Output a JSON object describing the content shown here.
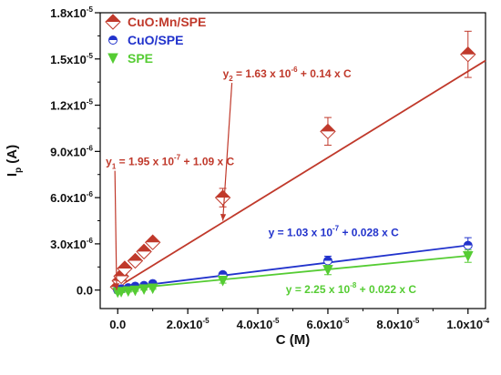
{
  "chart_data": {
    "type": "scatter",
    "xlabel": "C (M)",
    "ylabel": {
      "main": "I",
      "sub": "p",
      "unit": " (A)"
    },
    "xlim": [
      -5e-06,
      0.000105
    ],
    "ylim": [
      -1.2e-06,
      1.8e-05
    ],
    "xticks": [
      {
        "value": 0,
        "label": "0.0"
      },
      {
        "value": 2e-05,
        "base": "2.0x10",
        "exp": "-5"
      },
      {
        "value": 4e-05,
        "base": "4.0x10",
        "exp": "-5"
      },
      {
        "value": 6e-05,
        "base": "6.0x10",
        "exp": "-5"
      },
      {
        "value": 8e-05,
        "base": "8.0x10",
        "exp": "-5"
      },
      {
        "value": 0.0001,
        "base": "1.0x10",
        "exp": "-4"
      }
    ],
    "yticks": [
      {
        "value": 0,
        "label": "0.0"
      },
      {
        "value": 3e-06,
        "base": "3.0x10",
        "exp": "-6"
      },
      {
        "value": 6e-06,
        "base": "6.0x10",
        "exp": "-6"
      },
      {
        "value": 9e-06,
        "base": "9.0x10",
        "exp": "-6"
      },
      {
        "value": 1.2e-05,
        "base": "1.2x10",
        "exp": "-5"
      },
      {
        "value": 1.5e-05,
        "base": "1.5x10",
        "exp": "-5"
      },
      {
        "value": 1.8e-05,
        "base": "1.8x10",
        "exp": "-5"
      }
    ],
    "legend_position": "top-left",
    "series": [
      {
        "name": "CuO:Mn/SPE",
        "color": "#c0392b",
        "marker": "diamond",
        "x": [
          0,
          5e-07,
          1e-06,
          2e-06,
          5e-06,
          7.5e-06,
          1e-05,
          3e-05,
          6e-05,
          0.0001
        ],
        "y": [
          2e-07,
          6e-07,
          9e-07,
          1.4e-06,
          1.9e-06,
          2.5e-06,
          3.1e-06,
          6e-06,
          1.03e-05,
          1.53e-05
        ],
        "err": [
          3e-07,
          3e-07,
          3e-07,
          2e-07,
          2e-07,
          2e-07,
          2e-07,
          6e-07,
          9e-07,
          1.5e-06
        ],
        "fit": {
          "slope": 0.14,
          "intercept": 1.95e-07,
          "x_range": [
            0,
            0.000105
          ]
        }
      },
      {
        "name": "CuO/SPE",
        "color": "#2233cc",
        "marker": "circle",
        "x": [
          0,
          1e-06,
          3e-06,
          5e-06,
          7.5e-06,
          1e-05,
          3e-05,
          6e-05,
          0.0001
        ],
        "y": [
          0,
          8e-08,
          1.5e-07,
          2.5e-07,
          3e-07,
          4.2e-07,
          1e-06,
          1.9e-06,
          2.9e-06
        ],
        "err": [
          5e-08,
          5e-08,
          5e-08,
          5e-08,
          5e-08,
          5e-08,
          1.5e-07,
          3e-07,
          5e-07
        ],
        "fit": {
          "slope": 0.028,
          "intercept": 1.03e-07,
          "x_range": [
            0,
            0.0001
          ]
        }
      },
      {
        "name": "SPE",
        "color": "#55cc33",
        "marker": "triangle-down",
        "x": [
          0,
          1e-06,
          3e-06,
          5e-06,
          7.5e-06,
          1e-05,
          3e-05,
          6e-05,
          0.0001
        ],
        "y": [
          -1.5e-07,
          -1.2e-07,
          -8e-08,
          -3e-08,
          5e-08,
          1e-07,
          6e-07,
          1.3e-06,
          2.2e-06
        ],
        "err": [
          5e-08,
          5e-08,
          5e-08,
          5e-08,
          5e-08,
          5e-08,
          1.5e-07,
          3e-07,
          4e-07
        ],
        "fit": {
          "slope": 0.022,
          "intercept": 2.25e-08,
          "x_range": [
            0,
            0.0001
          ]
        }
      }
    ],
    "annotations": [
      {
        "series": 0,
        "color": "#c0392b",
        "prefix": "y",
        "index": "2",
        "eq": " = 1.63 x 10",
        "exp": "-6",
        "tail": " + 0.14 x C",
        "arrow_to": [
          3e-05,
          4.5e-06
        ]
      },
      {
        "series": 0,
        "color": "#c0392b",
        "prefix": "y",
        "index": "1",
        "eq": " = 1.95 x 10",
        "exp": "-7",
        "tail": " + 1.09 x C",
        "arrow_to": [
          -3e-07,
          0.0
        ]
      },
      {
        "series": 1,
        "color": "#2233cc",
        "prefix": "y",
        "index": "",
        "eq": " = 1.03 x 10",
        "exp": "-7",
        "tail": " + 0.028 x C",
        "arrow_to": null
      },
      {
        "series": 2,
        "color": "#55cc33",
        "prefix": "y",
        "index": "",
        "eq": " = 2.25 x 10",
        "exp": "-8",
        "tail": " + 0.022 x C",
        "arrow_to": null
      }
    ]
  }
}
